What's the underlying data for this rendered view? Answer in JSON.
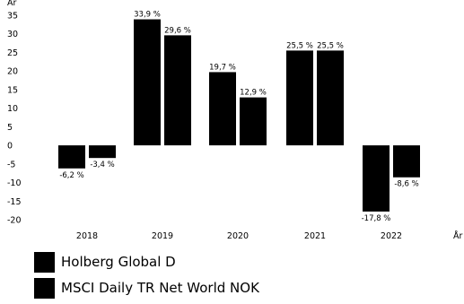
{
  "chart_data": {
    "type": "bar",
    "categories": [
      "2018",
      "2019",
      "2020",
      "2021",
      "2022"
    ],
    "series": [
      {
        "name": "Holberg Global D",
        "values": [
          -6.2,
          33.9,
          19.7,
          25.5,
          -17.8
        ],
        "labels": [
          "-6,2 %",
          "33,9 %",
          "19,7 %",
          "25,5 %",
          "-17,8 %"
        ],
        "color": "#000000"
      },
      {
        "name": "MSCI Daily TR Net World NOK",
        "values": [
          -3.4,
          29.6,
          12.9,
          25.5,
          -8.6
        ],
        "labels": [
          "-3,4 %",
          "29,6 %",
          "12,9 %",
          "25,5 %",
          "-8,6 %"
        ],
        "color": "#000000"
      }
    ],
    "title": "",
    "xlabel": "År",
    "ylabel": "År",
    "ylim": [
      -20,
      35
    ],
    "yticks": [
      35,
      30,
      25,
      20,
      15,
      10,
      5,
      0,
      -5,
      -10,
      -15,
      -20
    ],
    "grid": false,
    "legend_position": "bottom-left"
  }
}
